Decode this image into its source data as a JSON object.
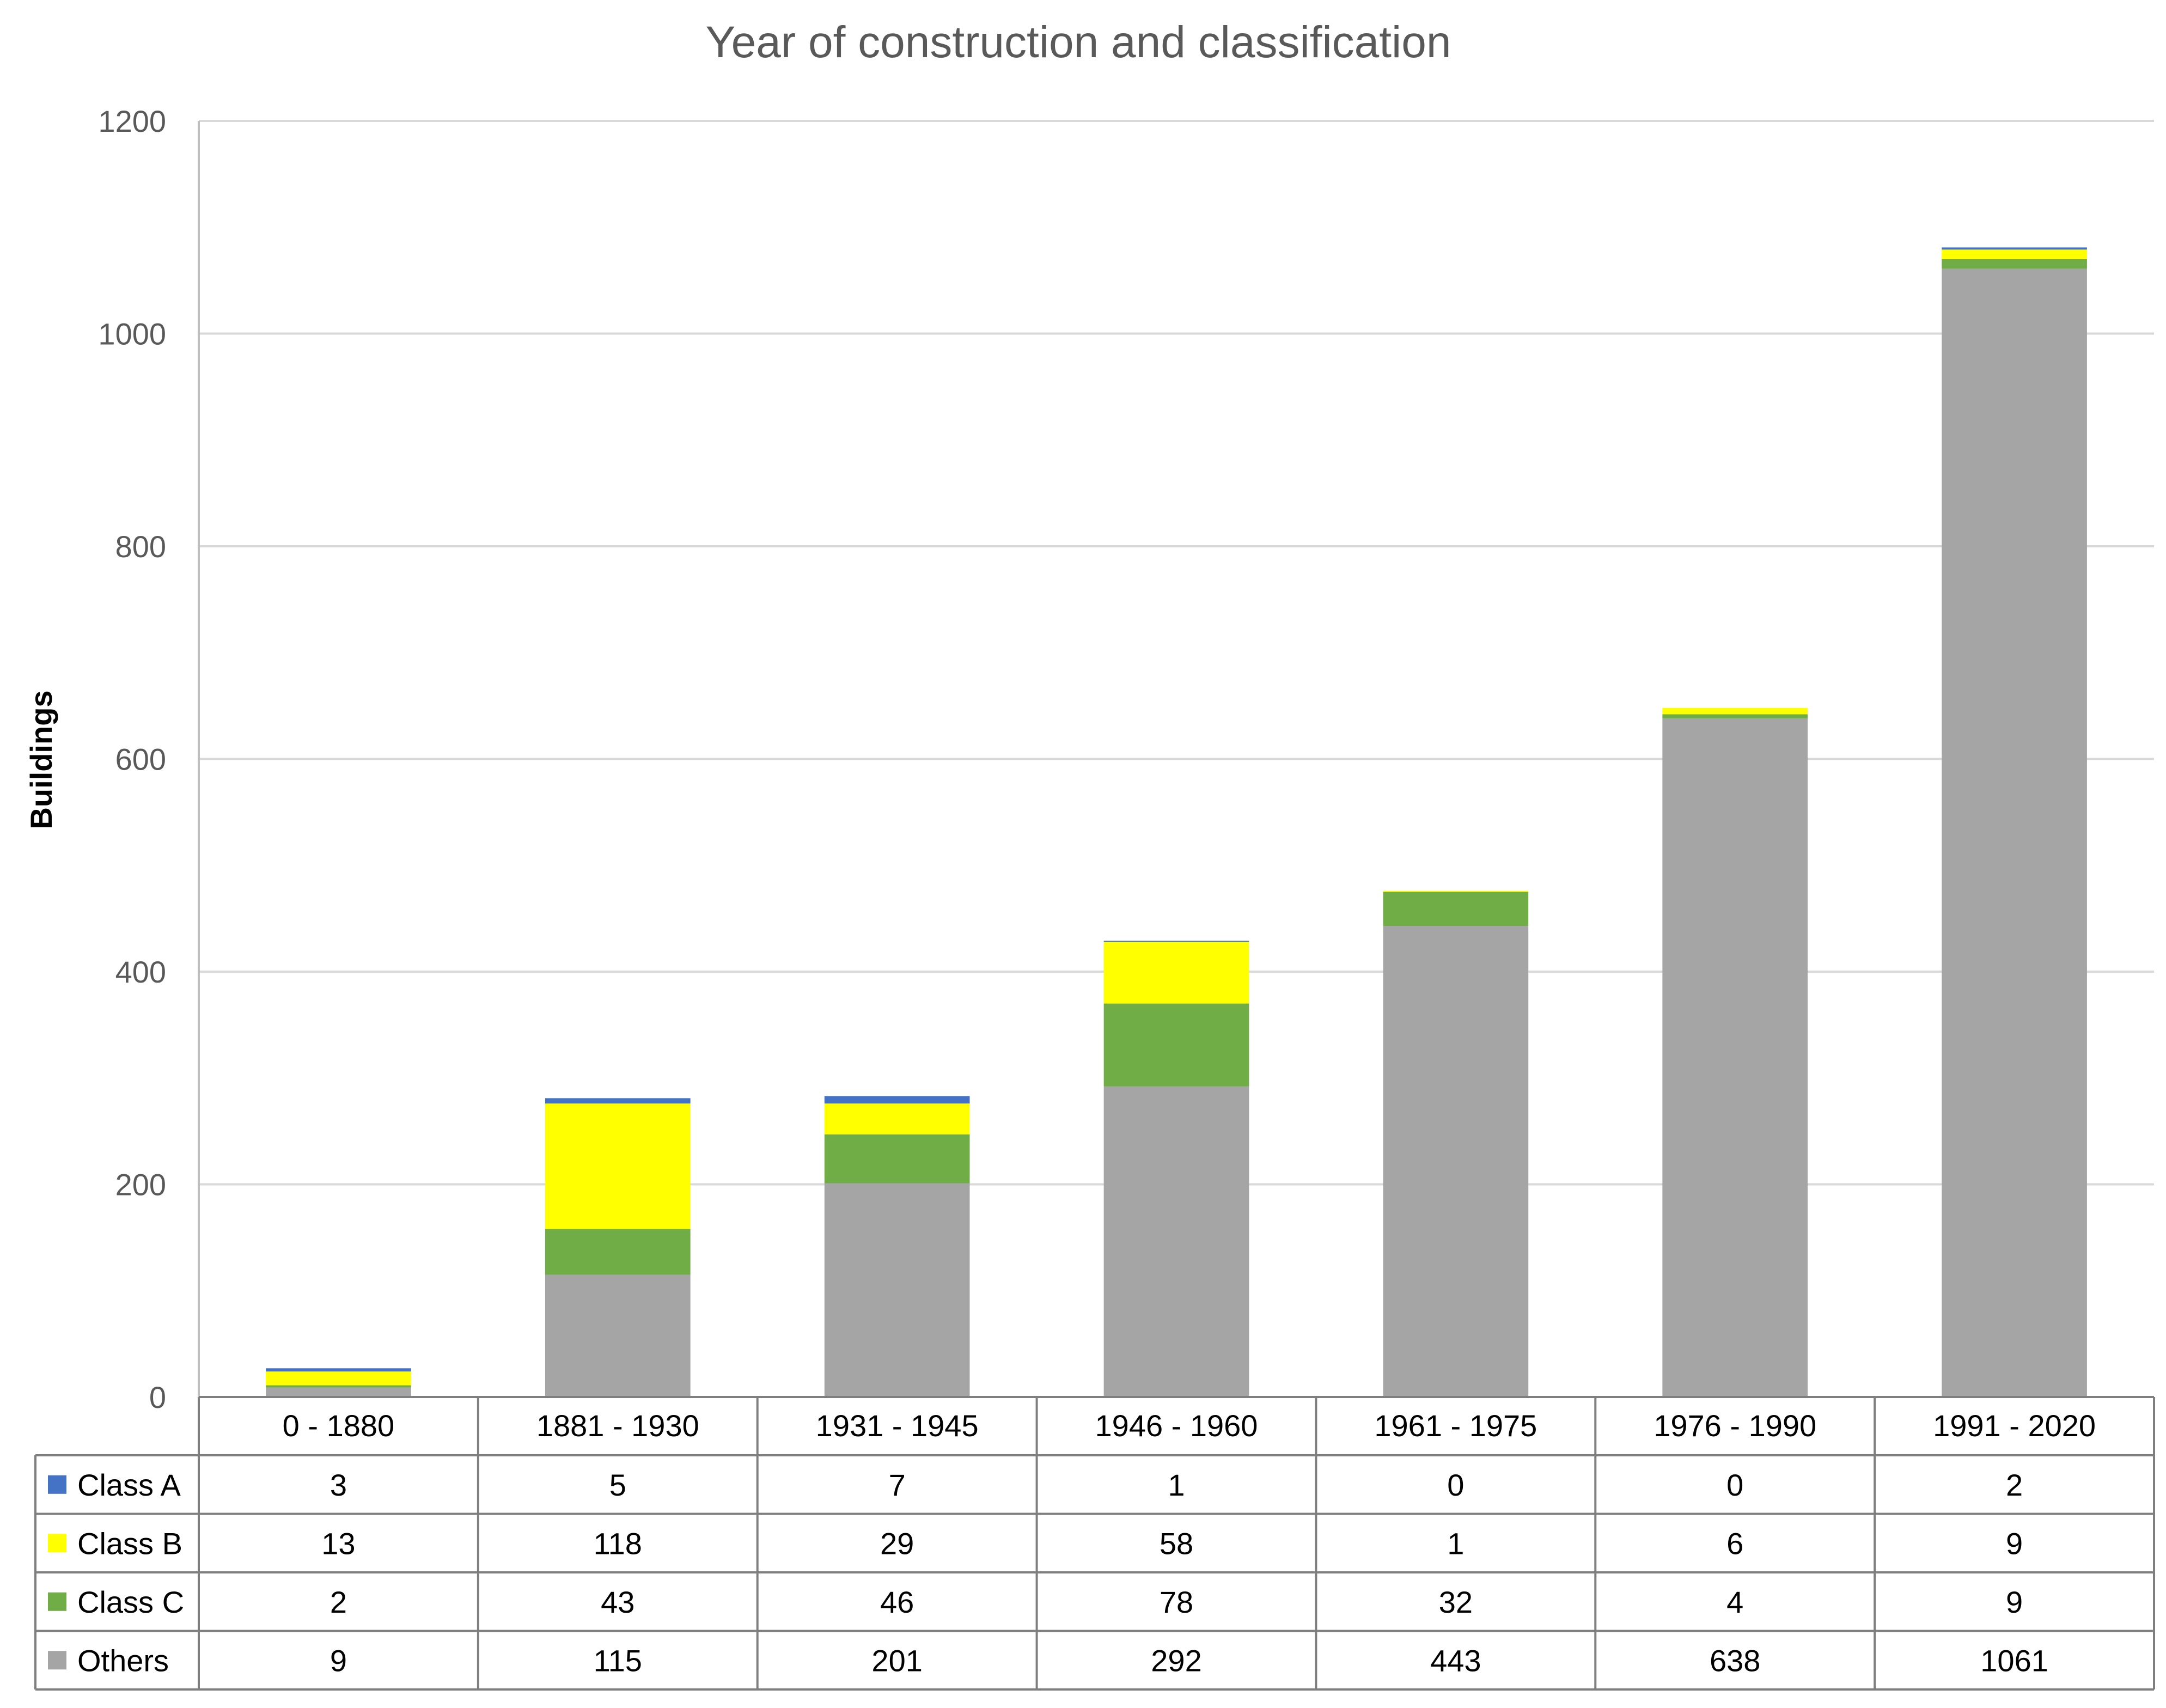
{
  "chart_data": {
    "type": "bar",
    "stacked": true,
    "title": "Year of construction and classification",
    "xlabel": "",
    "ylabel": "Buildings",
    "ylim": [
      0,
      1200
    ],
    "yticks": [
      0,
      200,
      400,
      600,
      800,
      1000,
      1200
    ],
    "grid": true,
    "legend": "data-table",
    "categories": [
      "0 - 1880",
      "1881 - 1930",
      "1931 - 1945",
      "1946 - 1960",
      "1961 - 1975",
      "1976 - 1990",
      "1991 - 2020"
    ],
    "series": [
      {
        "name": "Class A",
        "color": "#4472C4",
        "values": [
          3,
          5,
          7,
          1,
          0,
          0,
          2
        ]
      },
      {
        "name": "Class B",
        "color": "#FFFF00",
        "values": [
          13,
          118,
          29,
          58,
          1,
          6,
          9
        ]
      },
      {
        "name": "Class C",
        "color": "#70AD47",
        "values": [
          2,
          43,
          46,
          78,
          32,
          4,
          9
        ]
      },
      {
        "name": "Others",
        "color": "#A5A5A5",
        "values": [
          9,
          115,
          201,
          292,
          443,
          638,
          1061
        ]
      }
    ],
    "stack_order": [
      "Others",
      "Class C",
      "Class B",
      "Class A"
    ]
  }
}
